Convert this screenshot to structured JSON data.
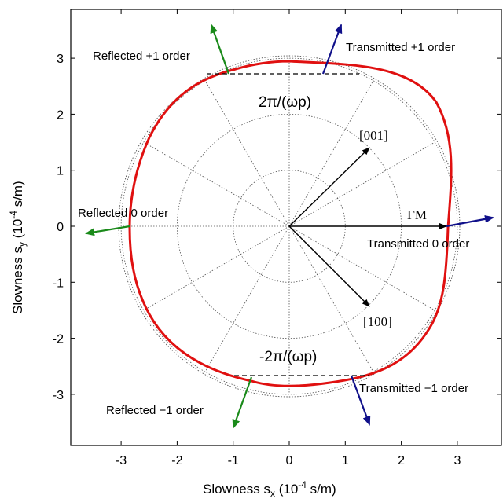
{
  "axes": {
    "xlabel_prefix": "Slowness s",
    "xlabel_sub": "x",
    "xlabel_unit_a": " (10",
    "xlabel_exp": "-4",
    "xlabel_unit_b": " s/m)",
    "ylabel_prefix": "Slowness s",
    "ylabel_sub": "y",
    "ylabel_unit_a": " (10",
    "ylabel_exp": "-4",
    "ylabel_unit_b": " s/m)",
    "xticks": [
      "-3",
      "-2",
      "-1",
      "0",
      "1",
      "2",
      "3"
    ],
    "yticks": [
      "3",
      "2",
      "1",
      "0",
      "-1",
      "-2",
      "-3"
    ],
    "xlim": [
      -3.9,
      3.8
    ],
    "ylim": [
      -3.9,
      3.8
    ]
  },
  "polar_grid": {
    "circle_radii": [
      1,
      2,
      3
    ],
    "spoke_angles_deg": [
      0,
      30,
      60,
      90,
      120,
      150,
      180,
      210,
      240,
      270,
      300,
      330
    ]
  },
  "grating_lines": {
    "top_label": "2π/(ωp)",
    "bottom_label": "-2π/(ωp)",
    "top_sy": 2.72,
    "bottom_sy": -2.7
  },
  "vectors": {
    "gamma_m": "ΓM",
    "dir_001": "[001]",
    "dir_100": "[100]"
  },
  "orders": {
    "reflected_plus1": "Reflected +1 order",
    "transmitted_plus1": "Transmitted +1 order",
    "reflected_0": "Reflected 0 order",
    "transmitted_0": "Transmitted 0 order",
    "reflected_minus1": "Reflected −1 order",
    "transmitted_minus1": "Transmitted −1 order"
  },
  "colors": {
    "slowness_curve": "#e01010",
    "reflected": "#1a8a1a",
    "transmitted": "#10108a",
    "grid": "#555555"
  }
}
